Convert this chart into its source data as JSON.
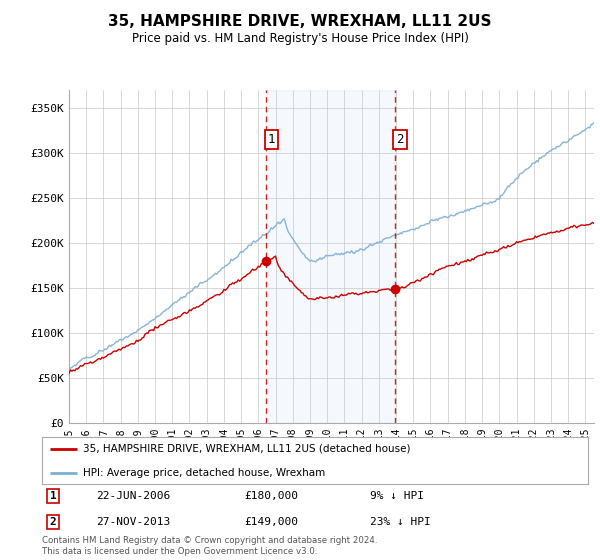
{
  "title": "35, HAMPSHIRE DRIVE, WREXHAM, LL11 2US",
  "subtitle": "Price paid vs. HM Land Registry's House Price Index (HPI)",
  "hpi_color": "#7aadd4",
  "price_color": "#cc0000",
  "shade_color": "#ddeeff",
  "annotation1_date": "22-JUN-2006",
  "annotation1_price": 180000,
  "annotation1_label": "9% ↓ HPI",
  "annotation2_date": "27-NOV-2013",
  "annotation2_price": 149000,
  "annotation2_label": "23% ↓ HPI",
  "legend_line1": "35, HAMPSHIRE DRIVE, WREXHAM, LL11 2US (detached house)",
  "legend_line2": "HPI: Average price, detached house, Wrexham",
  "footer": "Contains HM Land Registry data © Crown copyright and database right 2024.\nThis data is licensed under the Open Government Licence v3.0.",
  "ylim": [
    0,
    370000
  ],
  "yticks": [
    0,
    50000,
    100000,
    150000,
    200000,
    250000,
    300000,
    350000
  ],
  "ytick_labels": [
    "£0",
    "£50K",
    "£100K",
    "£150K",
    "£200K",
    "£250K",
    "£300K",
    "£350K"
  ],
  "t1_x": 2006.46,
  "t1_y": 180000,
  "t2_x": 2013.92,
  "t2_y": 149000,
  "xmin": 1995,
  "xmax": 2025.5
}
